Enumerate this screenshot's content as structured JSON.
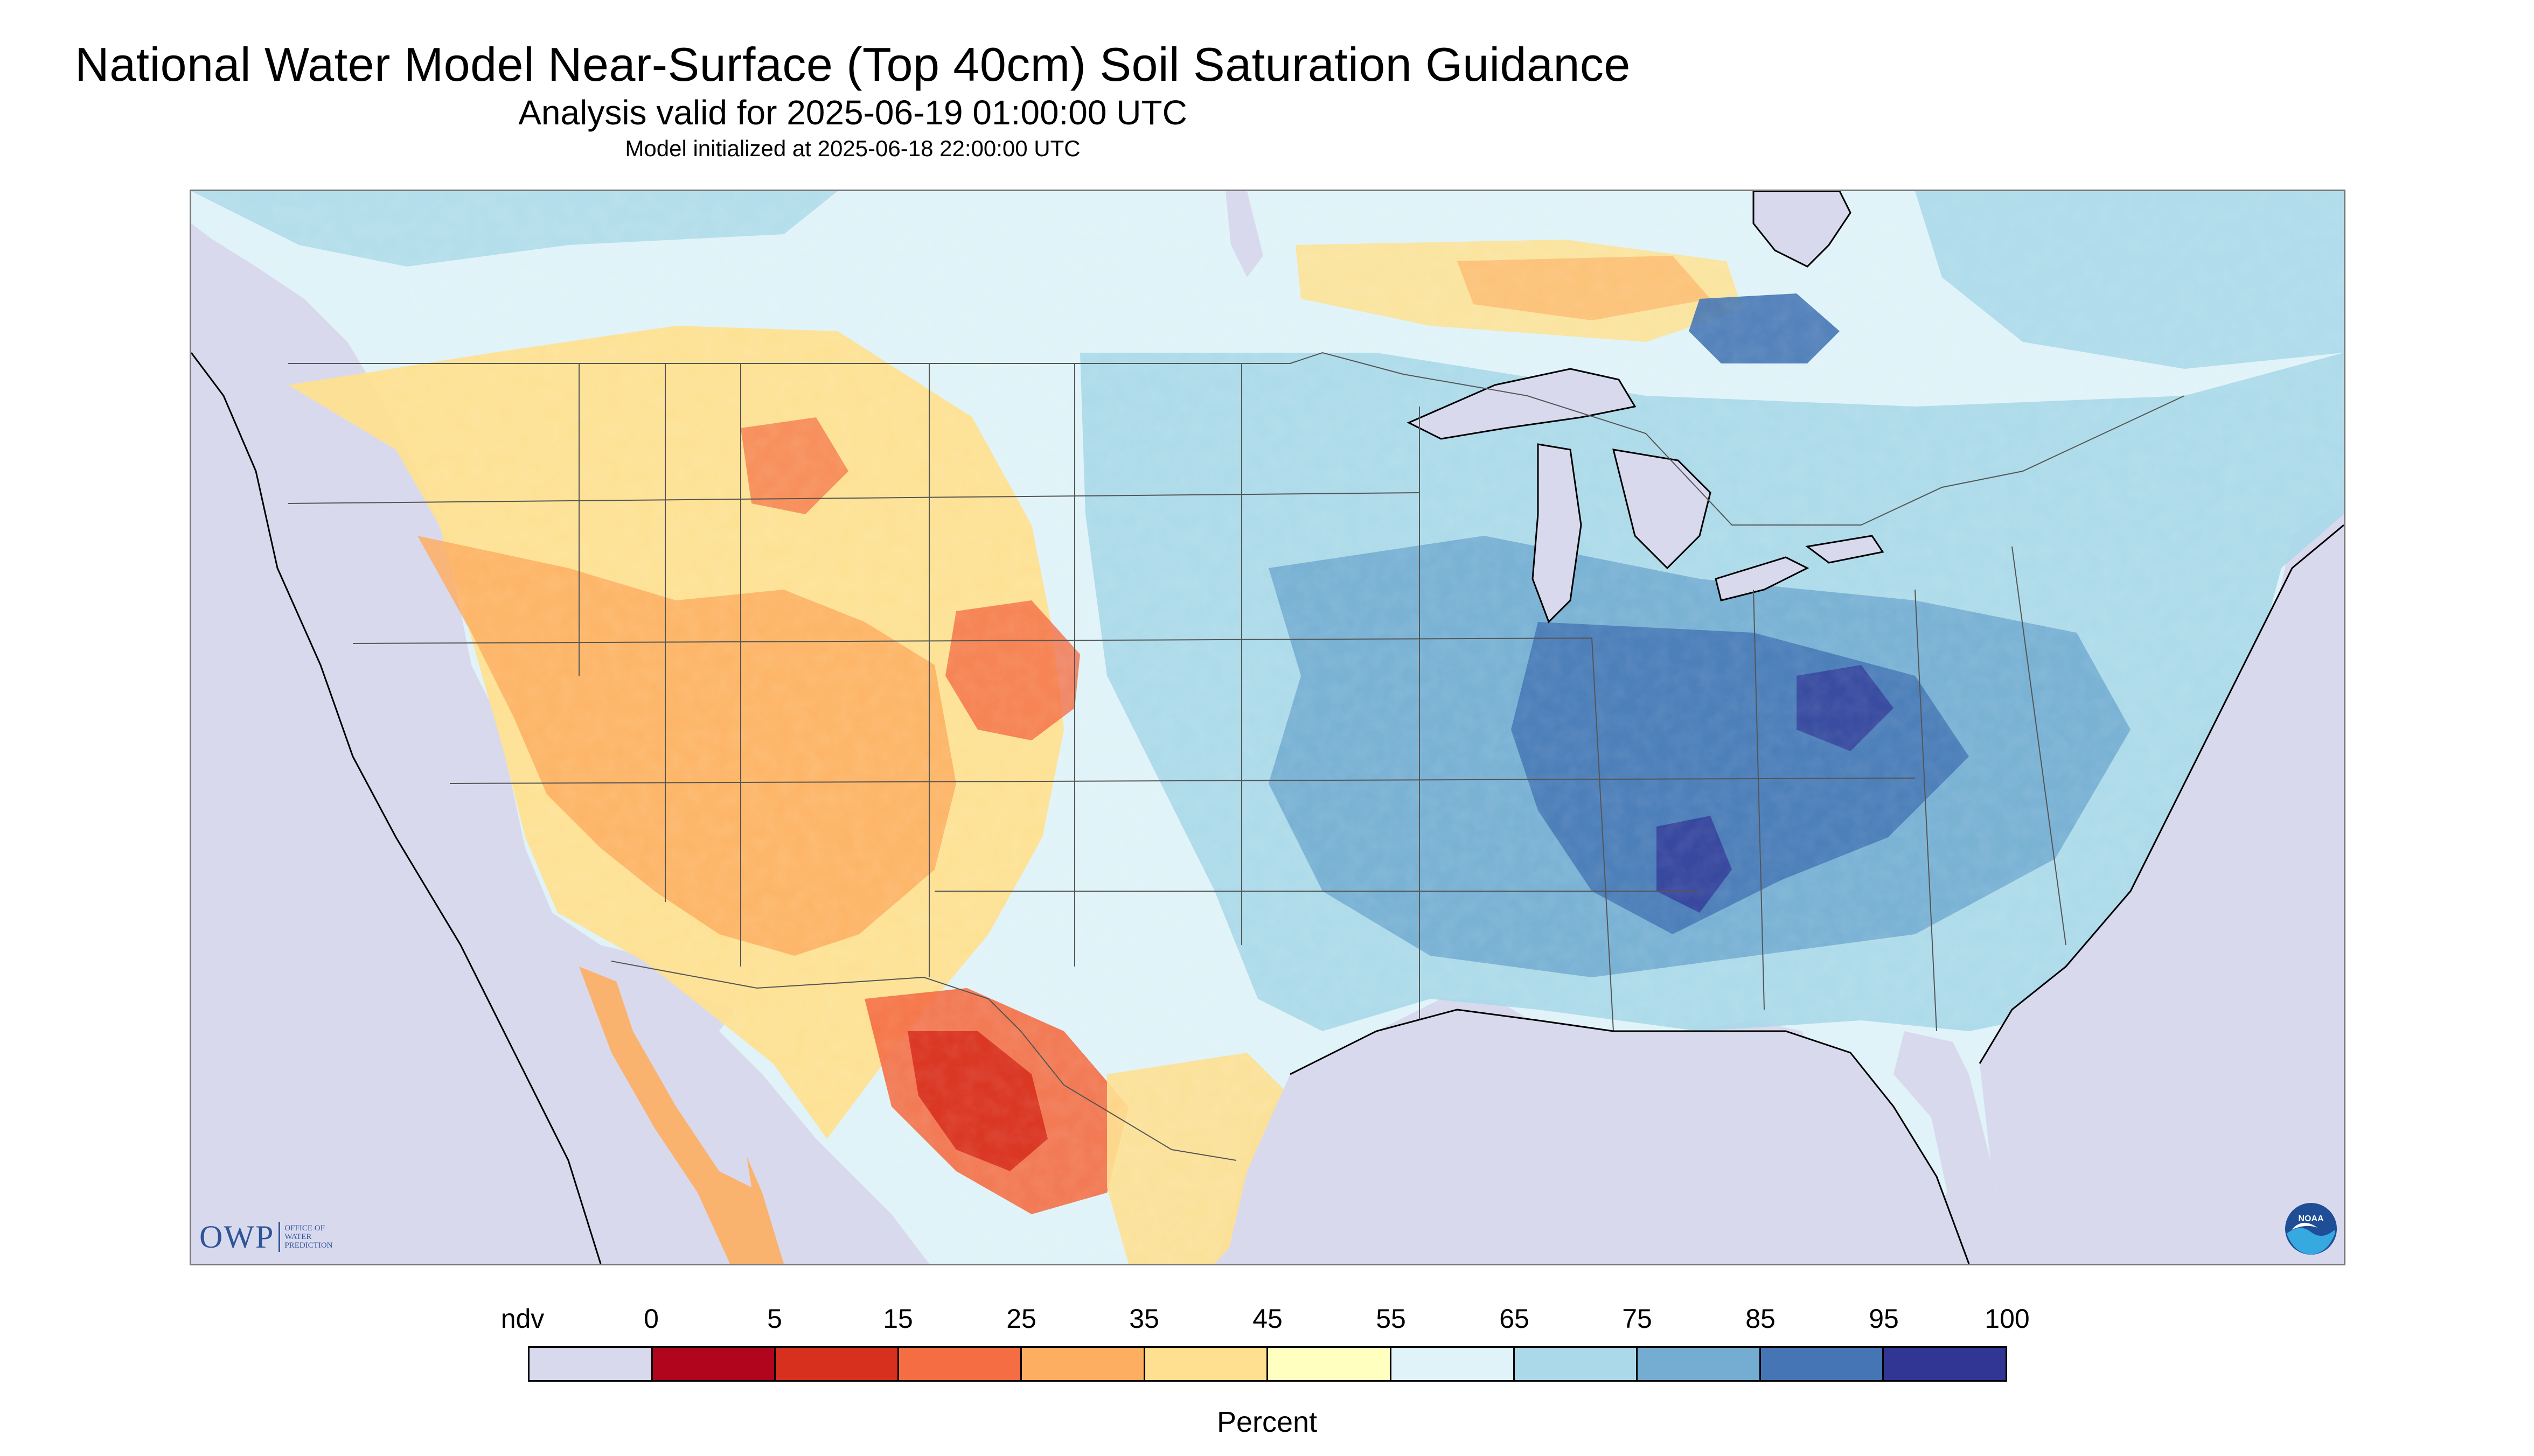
{
  "header": {
    "title": "National Water Model Near-Surface (Top 40cm) Soil Saturation Guidance",
    "analysis_valid": "Analysis valid for 2025-06-19 01:00:00 UTC",
    "model_initialized": "Model initialized at 2025-06-18 22:00:00 UTC"
  },
  "branding": {
    "owp_letters": "OWP",
    "owp_line1": "OFFICE OF",
    "owp_line2": "WATER",
    "owp_line3": "PREDICTION",
    "noaa_text": "NOAA"
  },
  "legend": {
    "labels": [
      "ndv",
      "0",
      "5",
      "15",
      "25",
      "35",
      "45",
      "55",
      "65",
      "75",
      "85",
      "95",
      "100"
    ],
    "colors": [
      "#d9d9ee",
      "#b1051e",
      "#d7301f",
      "#f46d43",
      "#fdae61",
      "#fee090",
      "#ffffbf",
      "#e0f3f8",
      "#abd9e9",
      "#74add1",
      "#4575b4",
      "#313695"
    ],
    "unit": "Percent"
  },
  "map": {
    "outside_color": "#d9d9ee",
    "water_color": "#d9d9ee",
    "boundary_color": "#555555",
    "coast_color": "#000000"
  }
}
